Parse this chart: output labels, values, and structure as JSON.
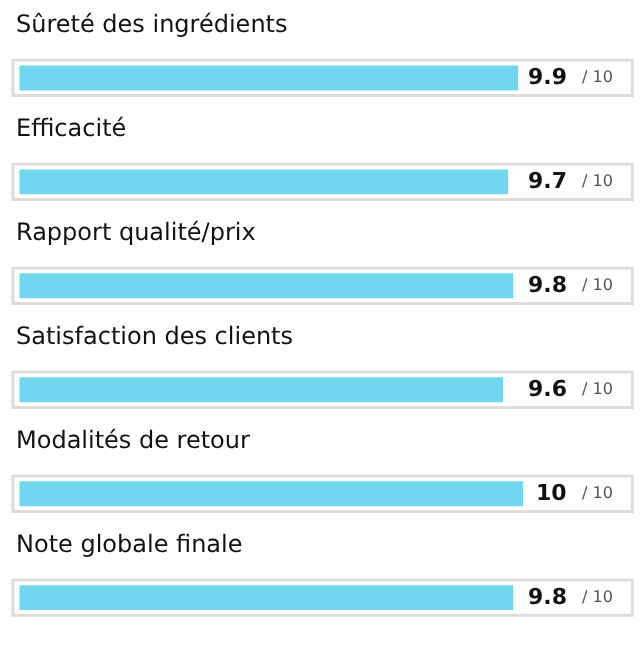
{
  "chart_data": {
    "type": "bar",
    "orientation": "horizontal",
    "categories": [
      "Sûreté des ingrédients",
      "Efficacité",
      "Rapport qualité/prix",
      "Satisfaction des clients",
      "Modalités de retour",
      "Note globale finale"
    ],
    "values": [
      9.9,
      9.7,
      9.8,
      9.6,
      10,
      9.8
    ],
    "data_labels": true,
    "annotations": [
      "/ 10",
      "/ 10",
      "/ 10",
      "/ 10",
      "/ 10",
      "/ 10"
    ],
    "color": "#72d6ee",
    "xlim": [
      0,
      10
    ],
    "tick_labels": false,
    "legend": false
  }
}
